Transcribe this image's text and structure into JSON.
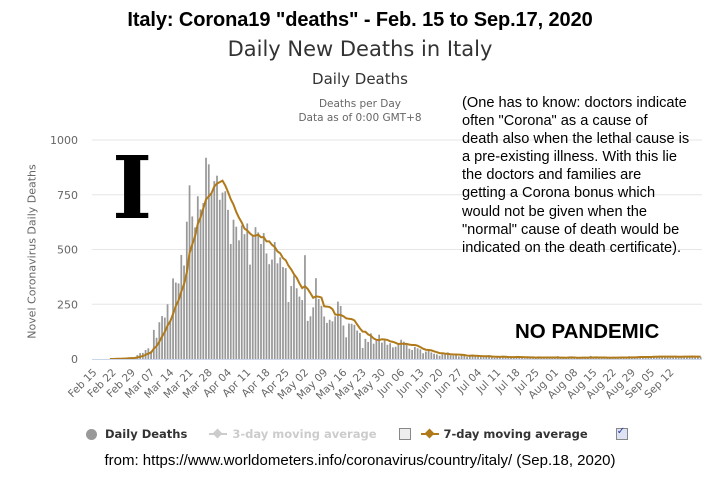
{
  "heading": "Italy: Corona19 \"deaths\" - Feb. 15 to Sep.17, 2020",
  "chart": {
    "title": "Daily New Deaths in Italy",
    "subtitle": "Daily Deaths",
    "note_line1": "Deaths per Day",
    "note_line2": "Data as of 0:00 GMT+8",
    "yaxis_title": "Novel Coronavirus Daily Deaths"
  },
  "annotation": {
    "lines": [
      "(One has to know: doctors indicate",
      "often \"Corona\" as a cause of",
      "death also when the lethal cause is",
      "a pre-existing illness. With this lie",
      "the doctors and families are",
      "getting a Corona bonus which",
      "would not be given when the",
      "\"normal\" cause of death would be",
      "indicated on the death certificate)."
    ],
    "big_letter": "I",
    "no_pandemic": "NO PANDEMIC"
  },
  "legend": {
    "daily": "Daily Deaths",
    "ma3": "3-day moving average",
    "ma7": "7-day moving average"
  },
  "source": "from: https://www.worldometers.info/coronavirus/country/italy/  (Sep.18, 2020)",
  "colors": {
    "bar": "#999999",
    "ma7": "#b07a1a",
    "grid": "#e6e6e6",
    "axis": "#ccd6eb"
  },
  "chart_data": {
    "type": "bar",
    "title": "Daily New Deaths in Italy",
    "subtitle": "Daily Deaths",
    "xlabel": "",
    "ylabel": "Novel Coronavirus Daily Deaths",
    "ylim": [
      0,
      1000
    ],
    "yticks": [
      0,
      250,
      500,
      750,
      1000
    ],
    "grid": true,
    "legend_position": "bottom",
    "start_date": "Feb 15",
    "end_date": "Sep 17",
    "xtick_labels": [
      "Feb 15",
      "Feb 22",
      "Feb 29",
      "Mar 07",
      "Mar 14",
      "Mar 21",
      "Mar 28",
      "Apr 04",
      "Apr 11",
      "Apr 18",
      "Apr 25",
      "May 02",
      "May 09",
      "May 16",
      "May 23",
      "May 30",
      "Jun 06",
      "Jun 13",
      "Jun 20",
      "Jun 27",
      "Jul 04",
      "Jul 11",
      "Jul 18",
      "Jul 25",
      "Aug 01",
      "Aug 08",
      "Aug 15",
      "Aug 22",
      "Aug 29",
      "Sep 05",
      "Sep 12"
    ],
    "series": [
      {
        "name": "Daily Deaths",
        "type": "bar",
        "values": [
          0,
          0,
          0,
          0,
          0,
          0,
          0,
          1,
          2,
          3,
          2,
          5,
          4,
          5,
          8,
          5,
          18,
          27,
          28,
          41,
          49,
          36,
          133,
          97,
          168,
          196,
          189,
          250,
          175,
          368,
          349,
          345,
          475,
          427,
          627,
          793,
          651,
          601,
          743,
          683,
          712,
          919,
          889,
          756,
          812,
          837,
          727,
          760,
          766,
          681,
          525,
          636,
          604,
          542,
          610,
          570,
          619,
          431,
          566,
          602,
          578,
          525,
          575,
          482,
          433,
          454,
          534,
          437,
          464,
          420,
          415,
          260,
          333,
          382,
          323,
          285,
          269,
          474,
          174,
          195,
          236,
          369,
          274,
          243,
          194,
          165,
          179,
          172,
          195,
          262,
          242,
          153,
          99,
          162,
          161,
          156,
          130,
          119,
          50,
          92,
          78,
          117,
          70,
          87,
          111,
          75,
          85,
          65,
          72,
          53,
          56,
          71,
          88,
          79,
          66,
          47,
          41,
          55,
          49,
          44,
          26,
          34,
          38,
          30,
          24,
          21,
          15,
          22,
          23,
          30,
          17,
          15,
          21,
          12,
          19,
          14,
          9,
          15,
          20,
          13,
          11,
          12,
          8,
          10,
          17,
          9,
          5,
          11,
          8,
          14,
          7,
          10,
          6,
          5,
          13,
          9,
          11,
          3,
          7,
          5,
          4,
          6,
          12,
          10,
          3,
          8,
          5,
          4,
          6,
          13,
          5,
          3,
          6,
          10,
          9,
          4,
          3,
          7,
          6,
          5,
          9,
          14,
          6,
          5,
          4,
          3,
          7,
          6,
          10,
          8,
          5,
          4,
          8,
          5,
          7,
          13,
          9,
          5,
          11,
          12,
          6,
          8,
          14,
          9,
          10,
          13,
          14,
          8,
          9,
          11,
          12,
          8,
          14,
          10,
          9,
          12,
          10,
          11,
          13,
          9,
          12,
          10
        ]
      },
      {
        "name": "7-day moving average",
        "type": "line",
        "derived_from": "Daily Deaths"
      }
    ]
  }
}
